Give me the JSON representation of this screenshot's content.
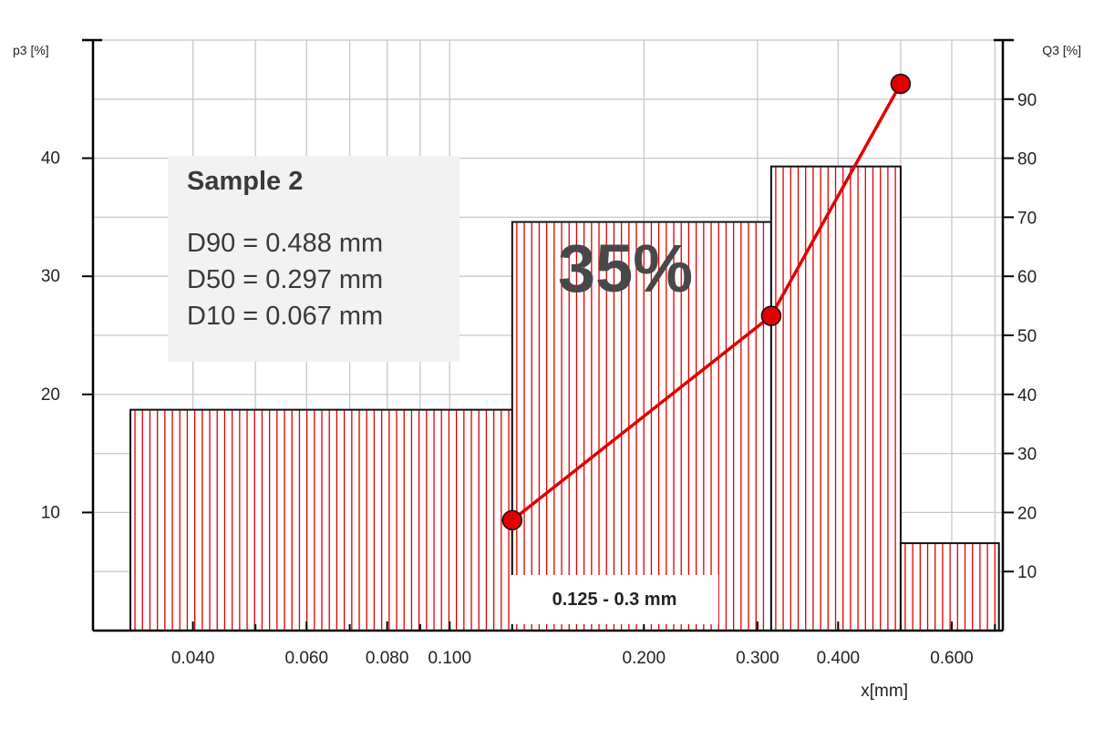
{
  "chart_data": {
    "type": "bar",
    "xlabel": "x[mm]",
    "ylabel_left": "p3 [%]",
    "ylabel_right": "Q3 [%]",
    "x_scale": "log",
    "xlim": [
      0.028,
      0.72
    ],
    "ylim_left": [
      0,
      50
    ],
    "ylim_right": [
      0,
      100
    ],
    "grid": true,
    "x_ticks": [
      {
        "value": 0.04,
        "label": "0.040"
      },
      {
        "value": 0.06,
        "label": "0.060"
      },
      {
        "value": 0.08,
        "label": "0.080"
      },
      {
        "value": 0.1,
        "label": "0.100"
      },
      {
        "value": 0.2,
        "label": "0.200"
      },
      {
        "value": 0.3,
        "label": "0.300"
      },
      {
        "value": 0.4,
        "label": "0.400"
      },
      {
        "value": 0.6,
        "label": "0.600"
      }
    ],
    "x_gridlines": [
      0.04,
      0.05,
      0.06,
      0.07,
      0.08,
      0.09,
      0.1,
      0.2,
      0.3,
      0.4,
      0.5,
      0.6,
      0.7
    ],
    "y_left_ticks": [
      10,
      20,
      30,
      40
    ],
    "y_right_ticks": [
      10,
      20,
      30,
      40,
      50,
      60,
      70,
      80,
      90
    ],
    "bins": [
      {
        "from": 0.032,
        "to": 0.125,
        "p3": 18.7
      },
      {
        "from": 0.125,
        "to": 0.315,
        "p3": 34.6
      },
      {
        "from": 0.315,
        "to": 0.5,
        "p3": 39.3
      },
      {
        "from": 0.5,
        "to": 0.71,
        "p3": 7.4
      }
    ],
    "cumulative": {
      "x": [
        0.125,
        0.315,
        0.5
      ],
      "q3": [
        18.7,
        53.3,
        92.6
      ]
    },
    "colors": {
      "bar_hatch": "#e00000",
      "line": "#e00000",
      "point": "#e00000",
      "grid": "#c8c8c8",
      "axis": "#000000"
    }
  },
  "infobox": {
    "title": "Sample 2",
    "d90": "D90 = 0.488 mm",
    "d50": "D50 = 0.297 mm",
    "d10": "D10 = 0.067 mm"
  },
  "highlight": {
    "percent": "35%",
    "range": "0.125 - 0.3 mm"
  }
}
